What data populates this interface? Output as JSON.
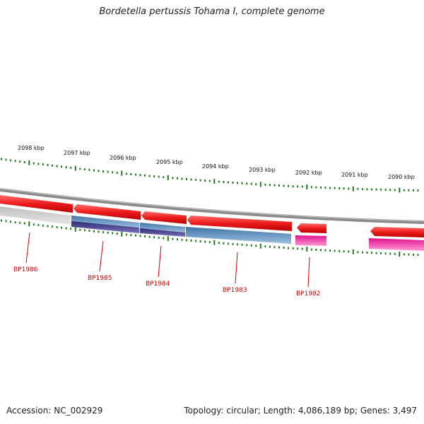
{
  "title": "Bordetella pertussis Tohama I, complete genome",
  "footer": {
    "accession": "Accession: NC_002929",
    "summary": "Topology: circular; Length: 4,086,189 bp; Genes: 3,497"
  },
  "scale_labels": [
    "2098 kbp",
    "2097 kbp",
    "2096 kbp",
    "2095 kbp",
    "2094 kbp",
    "2093 kbp",
    "2092 kbp",
    "2091 kbp",
    "2090 kbp"
  ],
  "gene_labels": [
    "BP1986",
    "BP1985",
    "BP1984",
    "BP1983",
    "BP1982"
  ],
  "colors": {
    "forward_feature": "#ee1c1c",
    "reverse_blue": "#4a86b8",
    "reverse_dark": "#4b3f8f",
    "reverse_grey": "#c8c8c8",
    "reverse_pink": "#ee3fa8",
    "backbone": "#8a8a8a",
    "tick": "#1e7a1e",
    "label_red": "#cc0000"
  }
}
